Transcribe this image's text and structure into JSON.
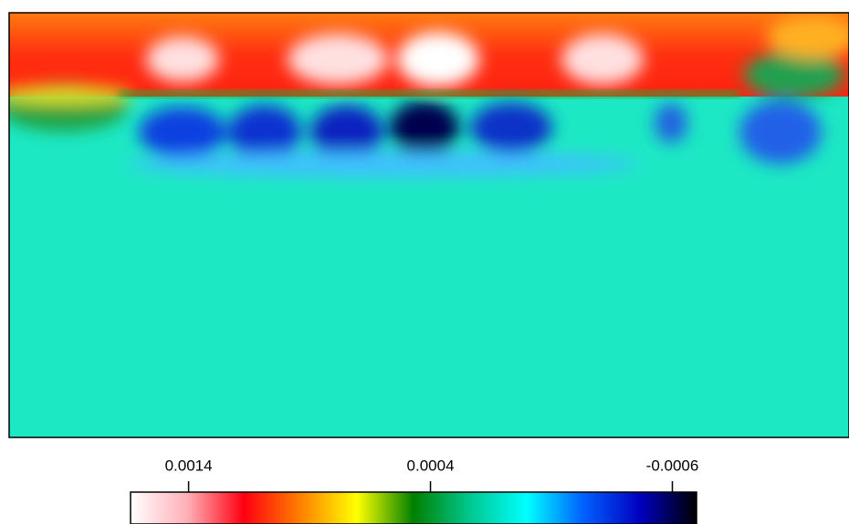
{
  "chart_data": {
    "type": "contour",
    "clim": [
      0.00164,
      -0.0007
    ],
    "colorbar_ticks": [
      0.0014,
      0.0004,
      -0.0006
    ],
    "colormap": [
      "#ffffff",
      "#ffb0b8",
      "#ff0010",
      "#ff8000",
      "#ffff00",
      "#008000",
      "#00c890",
      "#00ffff",
      "#0060ff",
      "#0000c0",
      "#000000"
    ]
  }
}
